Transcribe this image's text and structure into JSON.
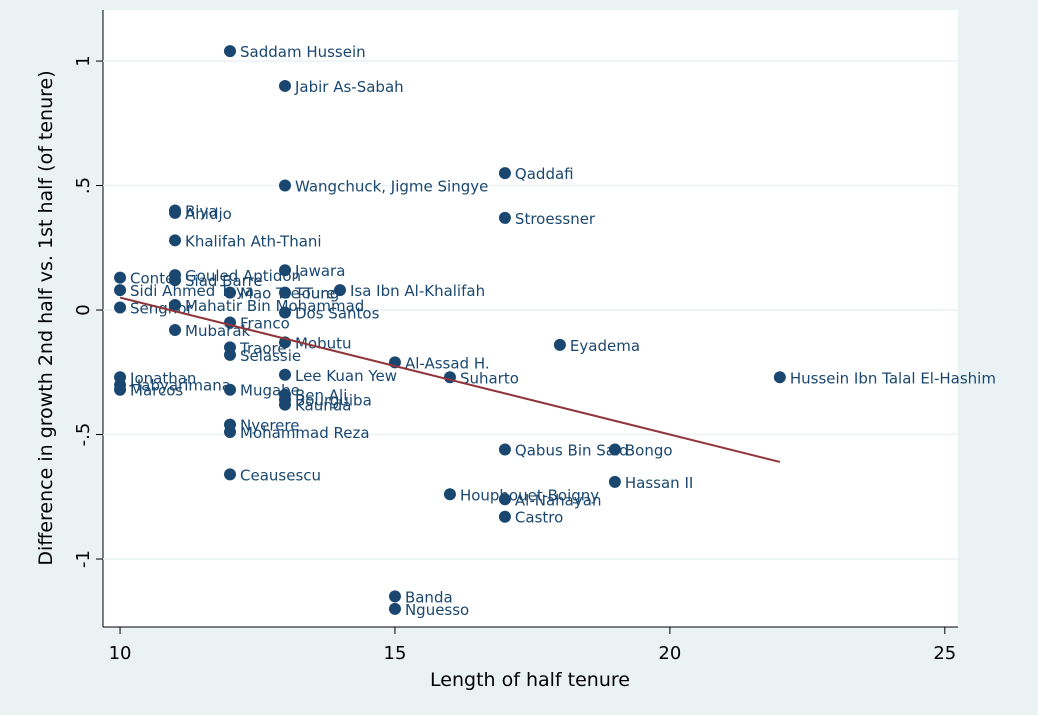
{
  "chart_data": {
    "type": "scatter",
    "xlabel": "Length of half tenure",
    "ylabel": "Difference in growth 2nd half vs. 1st half (of tenure)",
    "xlim": [
      9.69,
      25.24
    ],
    "xticks": [
      10,
      15,
      20,
      25
    ],
    "ylim": [
      -1.273,
      1.205
    ],
    "yticks": [
      {
        "value": -1,
        "label": "-1"
      },
      {
        "value": -0.5,
        "label": "-.5"
      },
      0,
      {
        "value": 0.5,
        "label": ".5"
      },
      1
    ],
    "grid": true,
    "color": "#1a476f",
    "labels": [
      "Saddam Hussein",
      "Jabir As-Sabah",
      "Qaddafi",
      "Wangchuck, Jigme Singye",
      "Biya",
      "Ahidjo",
      "Stroessner",
      "Khalifah Ath-Thani",
      "Jawara",
      "Conte",
      "Gouled Aptidon",
      "Siad Barre",
      "Sidi Ahmed Taya",
      "Mao Tse-Tung",
      "Toure",
      "Isa Ibn Al-Khalifah",
      "Senghor",
      "Mahatir Bin Mohammad",
      "Dos Santos",
      "Franco",
      "Mubarak",
      "Mobutu",
      "Eyadema",
      "Traore",
      "Selassie",
      "Al-Assad H.",
      "Hussein Ibn Talal El-Hashim",
      "Lee Kuan Yew",
      "Suharto",
      "Jonathan",
      "Habyarimana",
      "Marcos",
      "Mugabe",
      "Ben Ali",
      "Bourguiba",
      "Kaunda",
      "Nyerere",
      "Mohammad Reza",
      "Qabus Bin Said",
      "Bongo",
      "Hassan II",
      "Ceausescu",
      "Houphouet-Boigny",
      "Al-Nahayan",
      "Castro",
      "Banda",
      "Nguesso"
    ],
    "x": [
      12,
      13,
      17,
      13,
      11,
      11,
      17,
      11,
      13,
      10,
      11,
      11,
      10,
      12,
      13,
      14,
      10,
      11,
      13,
      12,
      11,
      13,
      18,
      12,
      12,
      15,
      22,
      13,
      16,
      10,
      10,
      10,
      12,
      13,
      13,
      13,
      12,
      12,
      17,
      19,
      19,
      12,
      16,
      17,
      17,
      15,
      15
    ],
    "values": [
      1.04,
      0.9,
      0.55,
      0.5,
      0.4,
      0.39,
      0.37,
      0.28,
      0.16,
      0.13,
      0.14,
      0.12,
      0.08,
      0.07,
      0.07,
      0.08,
      0.01,
      0.02,
      -0.01,
      -0.05,
      -0.08,
      -0.13,
      -0.14,
      -0.15,
      -0.18,
      -0.21,
      -0.27,
      -0.26,
      -0.27,
      -0.27,
      -0.3,
      -0.32,
      -0.32,
      -0.34,
      -0.36,
      -0.38,
      -0.46,
      -0.49,
      -0.56,
      -0.56,
      -0.69,
      -0.66,
      -0.74,
      -0.76,
      -0.83,
      -1.15,
      -1.2
    ],
    "fit": {
      "x": [
        10,
        22
      ],
      "values": [
        0.05,
        -0.61
      ],
      "color": "#90353b"
    }
  }
}
